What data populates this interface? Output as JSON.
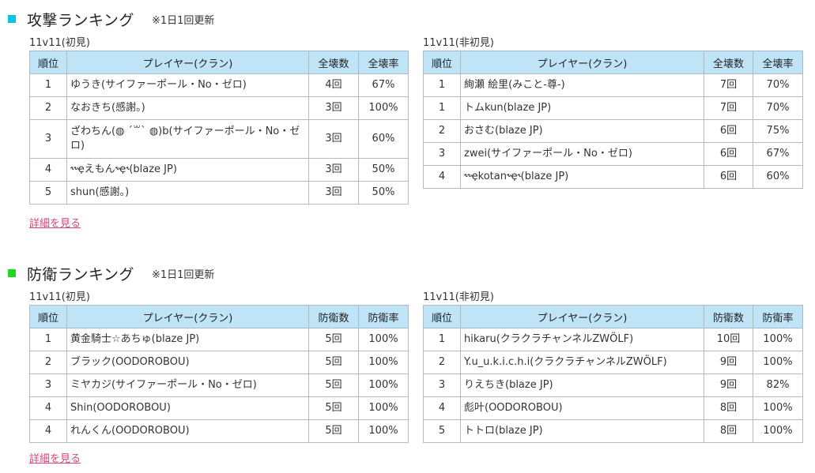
{
  "attack": {
    "title": "攻撃ランキング",
    "note": "※1日1回更新",
    "square_color": "#00c4e6",
    "detail_link": "詳細を見る",
    "left": {
      "caption": "11v11(初見)",
      "headers": [
        "順位",
        "プレイヤー(クラン)",
        "全壊数",
        "全壊率"
      ],
      "rows": [
        {
          "rank": "1",
          "player": "ゆうき(サイファーポール・No・ゼロ)",
          "count": "4回",
          "rate": "67%"
        },
        {
          "rank": "2",
          "player": "なおきち(感謝。)",
          "count": "3回",
          "rate": "100%"
        },
        {
          "rank": "3",
          "player": "ざわちん(◍ ´꒳` ◍)b(サイファーポール・No・ゼロ)",
          "count": "3回",
          "rate": "60%"
        },
        {
          "rank": "4",
          "player": "˞˞ҿえもん˞ҿ˞(blaze JP)",
          "count": "3回",
          "rate": "50%"
        },
        {
          "rank": "5",
          "player": "shun(感謝。)",
          "count": "3回",
          "rate": "50%"
        }
      ]
    },
    "right": {
      "caption": "11v11(非初見)",
      "headers": [
        "順位",
        "プレイヤー(クラン)",
        "全壊数",
        "全壊率"
      ],
      "rows": [
        {
          "rank": "1",
          "player": "絢瀬 絵里(みこと-尊-)",
          "count": "7回",
          "rate": "70%"
        },
        {
          "rank": "1",
          "player": "トムkun(blaze JP)",
          "count": "7回",
          "rate": "70%"
        },
        {
          "rank": "2",
          "player": "おさむ(blaze JP)",
          "count": "6回",
          "rate": "75%"
        },
        {
          "rank": "3",
          "player": "zwei(サイファーポール・No・ゼロ)",
          "count": "6回",
          "rate": "67%"
        },
        {
          "rank": "4",
          "player": "˞˞ҿkotan˞ҿ˞(blaze JP)",
          "count": "6回",
          "rate": "60%"
        }
      ]
    }
  },
  "defense": {
    "title": "防衛ランキング",
    "note": "※1日1回更新",
    "square_color": "#22d622",
    "detail_link": "詳細を見る",
    "left": {
      "caption": "11v11(初見)",
      "headers": [
        "順位",
        "プレイヤー(クラン)",
        "防衛数",
        "防衛率"
      ],
      "rows": [
        {
          "rank": "1",
          "player": "黄金騎士☆あちゅ(blaze JP)",
          "count": "5回",
          "rate": "100%"
        },
        {
          "rank": "2",
          "player": "ブラック(OODOROBOU)",
          "count": "5回",
          "rate": "100%"
        },
        {
          "rank": "3",
          "player": "ミヤカジ(サイファーポール・No・ゼロ)",
          "count": "5回",
          "rate": "100%"
        },
        {
          "rank": "4",
          "player": "Shin(OODOROBOU)",
          "count": "5回",
          "rate": "100%"
        },
        {
          "rank": "4",
          "player": "れんくん(OODOROBOU)",
          "count": "5回",
          "rate": "100%"
        }
      ]
    },
    "right": {
      "caption": "11v11(非初見)",
      "headers": [
        "順位",
        "プレイヤー(クラン)",
        "防衛数",
        "防衛率"
      ],
      "rows": [
        {
          "rank": "1",
          "player": "hikaru(クラクラチャンネルZWÖLF)",
          "count": "10回",
          "rate": "100%"
        },
        {
          "rank": "2",
          "player": "Y.u_u.k.i.c.h.i(クラクラチャンネルZWÖLF)",
          "count": "9回",
          "rate": "100%"
        },
        {
          "rank": "3",
          "player": "りえちき(blaze JP)",
          "count": "9回",
          "rate": "82%"
        },
        {
          "rank": "4",
          "player": "彪叶(OODOROBOU)",
          "count": "8回",
          "rate": "100%"
        },
        {
          "rank": "5",
          "player": "トトロ(blaze JP)",
          "count": "8回",
          "rate": "100%"
        }
      ]
    }
  }
}
